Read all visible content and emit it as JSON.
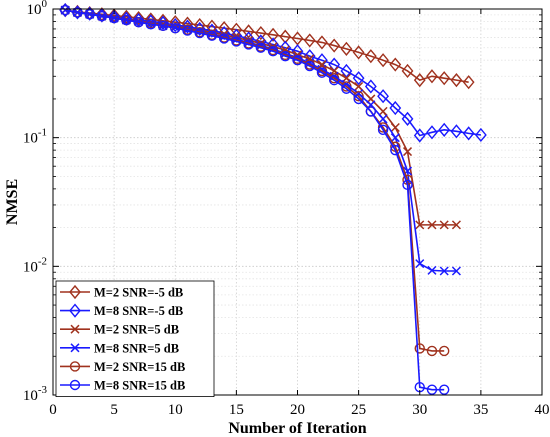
{
  "chart_data": {
    "type": "line",
    "xlabel": "Number of Iteration",
    "ylabel": "NMSE",
    "xlim": [
      0,
      40
    ],
    "ylim": [
      0.001,
      1
    ],
    "yscale": "log",
    "grid": true,
    "legend_position": "bottom-left",
    "x_ticks": [
      "0",
      "5",
      "10",
      "15",
      "20",
      "25",
      "30",
      "35",
      "40"
    ],
    "y_ticks": [
      {
        "value": 0.001,
        "base": "10",
        "exp": "-3"
      },
      {
        "value": 0.01,
        "base": "10",
        "exp": "-2"
      },
      {
        "value": 0.1,
        "base": "10",
        "exp": "-1"
      },
      {
        "value": 1,
        "base": "10",
        "exp": "0"
      }
    ],
    "series": [
      {
        "name": "M=2 SNR=-5 dB",
        "color": "#a0321e",
        "marker": "diamond",
        "x": [
          1,
          2,
          3,
          4,
          5,
          6,
          7,
          8,
          9,
          10,
          11,
          12,
          13,
          14,
          15,
          16,
          17,
          18,
          19,
          20,
          21,
          22,
          23,
          24,
          25,
          26,
          27,
          28,
          29,
          30,
          31,
          32,
          33,
          34
        ],
        "y": [
          0.98,
          0.95,
          0.93,
          0.91,
          0.89,
          0.87,
          0.85,
          0.83,
          0.81,
          0.79,
          0.77,
          0.75,
          0.73,
          0.71,
          0.69,
          0.67,
          0.65,
          0.63,
          0.61,
          0.59,
          0.57,
          0.55,
          0.52,
          0.49,
          0.46,
          0.43,
          0.4,
          0.37,
          0.33,
          0.28,
          0.3,
          0.29,
          0.28,
          0.27
        ]
      },
      {
        "name": "M=8 SNR=-5 dB",
        "color": "#1a1aff",
        "marker": "diamond",
        "x": [
          1,
          2,
          3,
          4,
          5,
          6,
          7,
          8,
          9,
          10,
          11,
          12,
          13,
          14,
          15,
          16,
          17,
          18,
          19,
          20,
          21,
          22,
          23,
          24,
          25,
          26,
          27,
          28,
          29,
          30,
          31,
          32,
          33,
          34,
          35
        ],
        "y": [
          0.98,
          0.94,
          0.92,
          0.89,
          0.87,
          0.84,
          0.82,
          0.8,
          0.78,
          0.75,
          0.73,
          0.7,
          0.68,
          0.65,
          0.62,
          0.59,
          0.56,
          0.53,
          0.5,
          0.47,
          0.43,
          0.4,
          0.37,
          0.33,
          0.29,
          0.25,
          0.21,
          0.17,
          0.14,
          0.104,
          0.11,
          0.115,
          0.112,
          0.108,
          0.105
        ]
      },
      {
        "name": "M=2 SNR=5 dB",
        "color": "#a0321e",
        "marker": "x",
        "x": [
          1,
          2,
          3,
          4,
          5,
          6,
          7,
          8,
          9,
          10,
          11,
          12,
          13,
          14,
          15,
          16,
          17,
          18,
          19,
          20,
          21,
          22,
          23,
          24,
          25,
          26,
          27,
          28,
          29,
          30,
          31,
          32,
          33
        ],
        "y": [
          0.98,
          0.94,
          0.91,
          0.88,
          0.86,
          0.83,
          0.81,
          0.78,
          0.76,
          0.73,
          0.71,
          0.68,
          0.66,
          0.63,
          0.6,
          0.57,
          0.54,
          0.51,
          0.48,
          0.44,
          0.41,
          0.37,
          0.33,
          0.29,
          0.25,
          0.2,
          0.16,
          0.12,
          0.078,
          0.021,
          0.021,
          0.021,
          0.021
        ]
      },
      {
        "name": "M=8 SNR=5 dB",
        "color": "#1a1aff",
        "marker": "x",
        "x": [
          1,
          2,
          3,
          4,
          5,
          6,
          7,
          8,
          9,
          10,
          11,
          12,
          13,
          14,
          15,
          16,
          17,
          18,
          19,
          20,
          21,
          22,
          23,
          24,
          25,
          26,
          27,
          28,
          29,
          30,
          31,
          32,
          33
        ],
        "y": [
          0.98,
          0.94,
          0.91,
          0.88,
          0.85,
          0.82,
          0.8,
          0.77,
          0.74,
          0.72,
          0.69,
          0.67,
          0.64,
          0.61,
          0.58,
          0.55,
          0.52,
          0.49,
          0.45,
          0.42,
          0.38,
          0.34,
          0.3,
          0.26,
          0.22,
          0.18,
          0.14,
          0.1,
          0.055,
          0.0105,
          0.0093,
          0.0092,
          0.0092
        ]
      },
      {
        "name": "M=2 SNR=15 dB",
        "color": "#a0321e",
        "marker": "circle",
        "x": [
          1,
          2,
          3,
          4,
          5,
          6,
          7,
          8,
          9,
          10,
          11,
          12,
          13,
          14,
          15,
          16,
          17,
          18,
          19,
          20,
          21,
          22,
          23,
          24,
          25,
          26,
          27,
          28,
          29,
          30,
          31,
          32
        ],
        "y": [
          0.98,
          0.94,
          0.91,
          0.88,
          0.85,
          0.82,
          0.79,
          0.77,
          0.74,
          0.71,
          0.69,
          0.66,
          0.63,
          0.6,
          0.57,
          0.54,
          0.51,
          0.48,
          0.44,
          0.41,
          0.37,
          0.33,
          0.29,
          0.25,
          0.21,
          0.16,
          0.12,
          0.085,
          0.047,
          0.0023,
          0.0022,
          0.0022
        ]
      },
      {
        "name": "M=8 SNR=15 dB",
        "color": "#1a1aff",
        "marker": "circle",
        "x": [
          1,
          2,
          3,
          4,
          5,
          6,
          7,
          8,
          9,
          10,
          11,
          12,
          13,
          14,
          15,
          16,
          17,
          18,
          19,
          20,
          21,
          22,
          23,
          24,
          25,
          26,
          27,
          28,
          29,
          30,
          31,
          32
        ],
        "y": [
          0.98,
          0.94,
          0.91,
          0.88,
          0.85,
          0.82,
          0.79,
          0.76,
          0.74,
          0.71,
          0.68,
          0.65,
          0.62,
          0.59,
          0.56,
          0.53,
          0.5,
          0.47,
          0.43,
          0.4,
          0.36,
          0.32,
          0.28,
          0.24,
          0.2,
          0.16,
          0.115,
          0.08,
          0.043,
          0.00115,
          0.0011,
          0.0011
        ]
      }
    ]
  }
}
